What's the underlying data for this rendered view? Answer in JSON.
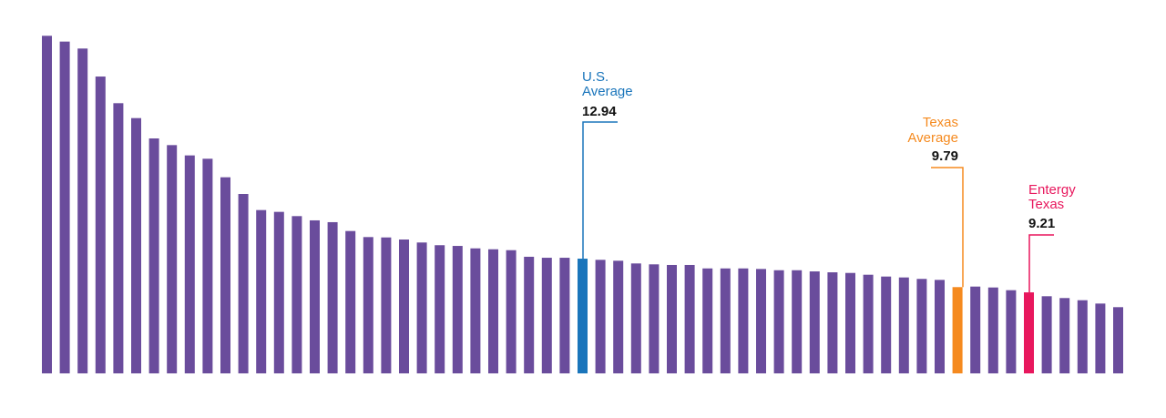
{
  "chart_data": {
    "type": "bar",
    "title": "",
    "xlabel": "",
    "ylabel": "",
    "grid": false,
    "colors": {
      "default": "#6a4c9c",
      "us_average": "#1a75bb",
      "texas_average": "#f58a1f",
      "entergy_texas": "#e8175d"
    },
    "values": [
      37.61,
      36.97,
      36.2,
      33.1,
      30.15,
      28.5,
      26.25,
      25.51,
      24.37,
      24.0,
      21.95,
      20.1,
      18.32,
      18.12,
      17.65,
      17.18,
      16.98,
      16.0,
      15.33,
      15.29,
      15.06,
      14.73,
      14.43,
      14.35,
      14.08,
      13.98,
      13.88,
      13.15,
      13.04,
      13.04,
      12.94,
      12.81,
      12.71,
      12.41,
      12.31,
      12.24,
      12.24,
      11.86,
      11.86,
      11.86,
      11.8,
      11.66,
      11.66,
      11.53,
      11.43,
      11.36,
      11.16,
      10.96,
      10.86,
      10.7,
      10.59,
      9.79,
      9.85,
      9.75,
      9.45,
      9.21,
      8.78,
      8.58,
      8.34,
      7.97,
      7.57
    ],
    "highlights": [
      {
        "index": 30,
        "line1": "U.S.",
        "line2": "Average",
        "value_label": "12.94",
        "color": "#1a75bb",
        "align": "left"
      },
      {
        "index": 51,
        "line1": "Texas",
        "line2": "Average",
        "value_label": "9.79",
        "color": "#f58a1f",
        "align": "right"
      },
      {
        "index": 55,
        "line1": "Entergy",
        "line2": "Texas",
        "value_label": "9.21",
        "color": "#e8175d",
        "align": "left"
      }
    ]
  }
}
